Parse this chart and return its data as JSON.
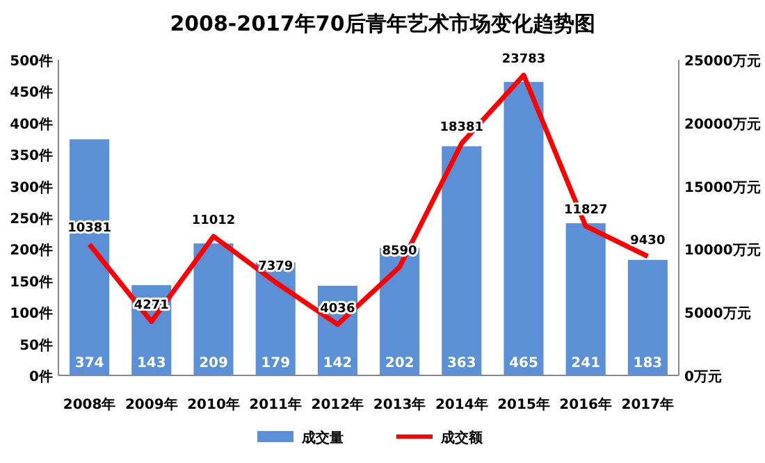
{
  "chart_data": {
    "type": "bar",
    "title": "2008-2017年70后青年艺术市场变化趋势图",
    "categories": [
      "2008年",
      "2009年",
      "2010年",
      "2011年",
      "2012年",
      "2013年",
      "2014年",
      "2015年",
      "2016年",
      "2017年"
    ],
    "series": [
      {
        "name": "成交量",
        "color": "#5b8fd6",
        "values": [
          374,
          143,
          209,
          179,
          142,
          202,
          363,
          465,
          241,
          183
        ]
      },
      {
        "name": "成交额",
        "type": "line",
        "axis": "y2",
        "color": "#ff0000",
        "values": [
          10381,
          4271,
          11012,
          7379,
          4036,
          8590,
          18381,
          23783,
          11827,
          9430
        ]
      }
    ],
    "ylim": [
      0,
      500
    ],
    "yticks": [
      {
        "value": 0,
        "label": "0件"
      },
      {
        "value": 50,
        "label": "50件"
      },
      {
        "value": 100,
        "label": "100件"
      },
      {
        "value": 150,
        "label": "150件"
      },
      {
        "value": 200,
        "label": "200件"
      },
      {
        "value": 250,
        "label": "250件"
      },
      {
        "value": 300,
        "label": "300件"
      },
      {
        "value": 350,
        "label": "350件"
      },
      {
        "value": 400,
        "label": "400件"
      },
      {
        "value": 450,
        "label": "450件"
      },
      {
        "value": 500,
        "label": "500件"
      }
    ],
    "y2lim": [
      0,
      25000
    ],
    "y2ticks": [
      {
        "value": 0,
        "label": "0万元"
      },
      {
        "value": 5000,
        "label": "5000万元"
      },
      {
        "value": 10000,
        "label": "10000万元"
      },
      {
        "value": 15000,
        "label": "15000万元"
      },
      {
        "value": 20000,
        "label": "20000万元"
      },
      {
        "value": 25000,
        "label": "25000万元"
      }
    ],
    "data_labels": true,
    "legend": "bottom"
  }
}
